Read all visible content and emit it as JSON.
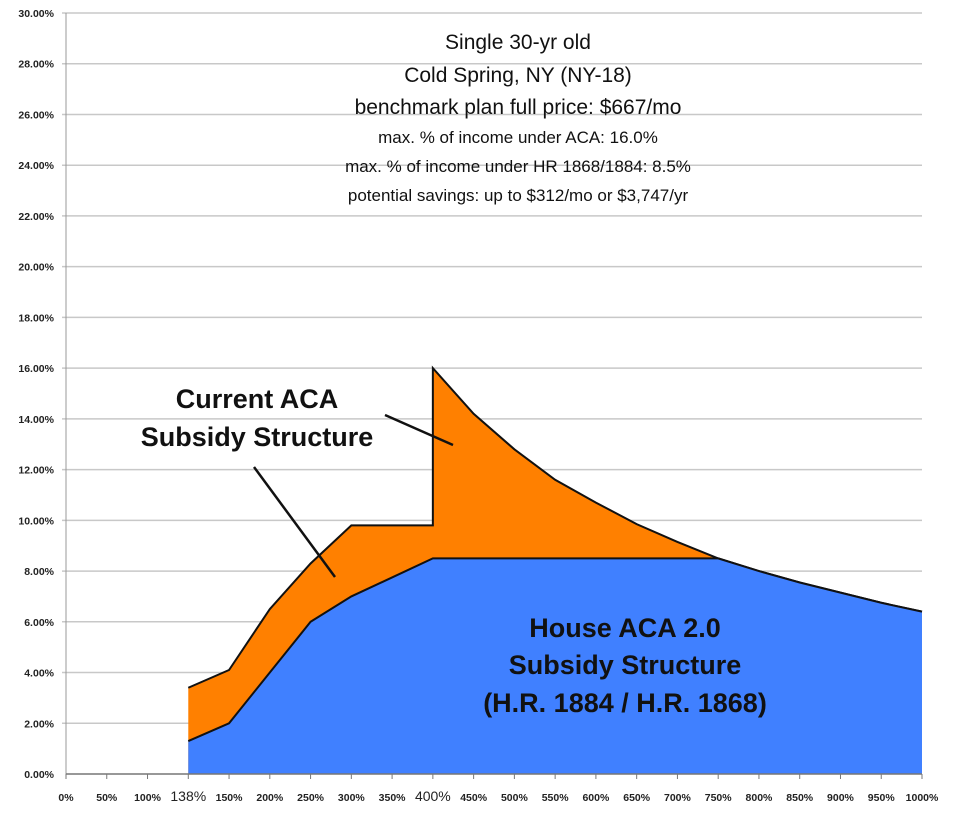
{
  "chart_data": {
    "type": "area",
    "categories": [
      "0%",
      "50%",
      "100%",
      "138%",
      "150%",
      "200%",
      "250%",
      "300%",
      "350%",
      "400%",
      "450%",
      "500%",
      "550%",
      "600%",
      "650%",
      "700%",
      "750%",
      "800%",
      "850%",
      "900%",
      "950%",
      "1000%"
    ],
    "emphasized_ticks": [
      "138%",
      "400%"
    ],
    "ylim": [
      0,
      30
    ],
    "yticks": [
      "0.00%",
      "2.00%",
      "4.00%",
      "6.00%",
      "8.00%",
      "10.00%",
      "12.00%",
      "14.00%",
      "16.00%",
      "18.00%",
      "20.00%",
      "22.00%",
      "24.00%",
      "26.00%",
      "28.00%",
      "30.00%"
    ],
    "grid": true,
    "xlabel": "",
    "ylabel": "",
    "info_lines": [
      "Single 30-yr old",
      "Cold Spring, NY (NY-18)",
      "benchmark plan full price: $667/mo",
      "max. % of income under ACA: 16.0%",
      "max. % of income under HR 1868/1884: 8.5%",
      "potential savings: up to $312/mo or $3,747/yr"
    ],
    "series": [
      {
        "name": "Current ACA Subsidy Structure",
        "label_lines": [
          "Current ACA",
          "Subsidy Structure"
        ],
        "color": "#FF8000",
        "points": [
          [
            "138%",
            3.4
          ],
          [
            "150%",
            4.1
          ],
          [
            "200%",
            6.5
          ],
          [
            "250%",
            8.3
          ],
          [
            "300%",
            9.8
          ],
          [
            "350%",
            9.8
          ],
          [
            "400%",
            9.8
          ],
          [
            "400%",
            16.0
          ],
          [
            "450%",
            14.2
          ],
          [
            "500%",
            12.8
          ],
          [
            "550%",
            11.6
          ],
          [
            "600%",
            10.7
          ],
          [
            "650%",
            9.85
          ],
          [
            "700%",
            9.15
          ],
          [
            "750%",
            8.5
          ],
          [
            "800%",
            8.0
          ],
          [
            "850%",
            7.55
          ],
          [
            "900%",
            7.15
          ],
          [
            "950%",
            6.75
          ],
          [
            "1000%",
            6.4
          ]
        ]
      },
      {
        "name": "House ACA 2.0 Subsidy Structure (H.R. 1884 / H.R. 1868)",
        "label_lines": [
          "House ACA 2.0",
          "Subsidy Structure",
          "(H.R. 1884 / H.R. 1868)"
        ],
        "color": "#4080FF",
        "points": [
          [
            "138%",
            1.3
          ],
          [
            "150%",
            2.0
          ],
          [
            "200%",
            4.0
          ],
          [
            "250%",
            6.0
          ],
          [
            "300%",
            7.0
          ],
          [
            "350%",
            7.75
          ],
          [
            "400%",
            8.5
          ],
          [
            "450%",
            8.5
          ],
          [
            "500%",
            8.5
          ],
          [
            "550%",
            8.5
          ],
          [
            "600%",
            8.5
          ],
          [
            "650%",
            8.5
          ],
          [
            "700%",
            8.5
          ],
          [
            "750%",
            8.5
          ],
          [
            "800%",
            8.0
          ],
          [
            "850%",
            7.55
          ],
          [
            "900%",
            7.15
          ],
          [
            "950%",
            6.75
          ],
          [
            "1000%",
            6.4
          ]
        ]
      }
    ]
  }
}
